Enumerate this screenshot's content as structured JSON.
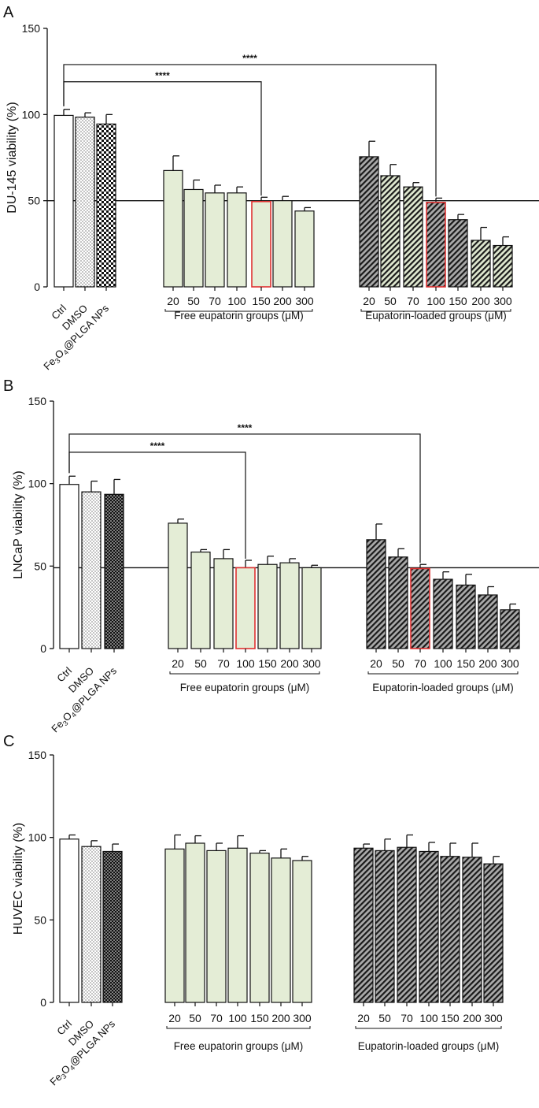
{
  "style": {
    "axis_color": "#111111",
    "ctrl_fill": "#ffffff",
    "free_fill": "#e4edd6",
    "loaded_fill": "#a9a9a9",
    "loaded_hatch": "#1a1a1a",
    "loaded_hatch_tint": "#dfe8d0",
    "highlight_color": "#e03131",
    "hatch_icon": "diagonal-hatch",
    "dots_icon": "stipple-dots",
    "checker_icon": "checkerboard"
  },
  "chart_data": [
    {
      "panel": "A",
      "type": "bar",
      "ylabel": "DU-145 viability (%)",
      "ylim": [
        0,
        150
      ],
      "yticks": [
        0,
        50,
        100,
        150
      ],
      "reference_line": 50,
      "grid": false,
      "groups": [
        {
          "name": "control",
          "label": "",
          "categories": [
            "Ctrl",
            "DMSO",
            "Fe3O4@PLGA NPs"
          ],
          "values": [
            99.5,
            98.5,
            94.5
          ],
          "errors": [
            3.5,
            2.5,
            5.5
          ],
          "patterns": [
            "plain",
            "dots",
            "checker"
          ]
        },
        {
          "name": "free",
          "label": "Free eupatorin groups (μM)",
          "categories": [
            "20",
            "50",
            "70",
            "100",
            "150",
            "200",
            "300"
          ],
          "values": [
            67.5,
            56.5,
            54.5,
            54.5,
            49.5,
            50,
            44
          ],
          "errors": [
            8.5,
            5.5,
            4.5,
            3.5,
            2.5,
            2.5,
            2
          ]
        },
        {
          "name": "loaded",
          "label": "Eupatorin-loaded groups (μM)",
          "categories": [
            "20",
            "50",
            "70",
            "100",
            "150",
            "200",
            "300"
          ],
          "values": [
            75.5,
            64.5,
            58,
            49,
            39,
            27,
            24
          ],
          "errors": [
            9,
            6.5,
            2.5,
            2.5,
            3,
            7.5,
            5
          ],
          "tint": [
            false,
            true,
            true,
            false,
            false,
            true,
            true
          ]
        }
      ],
      "highlight": [
        [
          "free",
          4
        ],
        [
          "loaded",
          3
        ]
      ],
      "significance": [
        {
          "from": [
            "control",
            0
          ],
          "to": [
            "free",
            4
          ],
          "label": "****",
          "y": 119
        },
        {
          "from": [
            "control",
            0
          ],
          "to": [
            "loaded",
            3
          ],
          "label": "****",
          "y": 129
        }
      ]
    },
    {
      "panel": "B",
      "type": "bar",
      "ylabel": "LNCaP viability (%)",
      "ylim": [
        0,
        150
      ],
      "yticks": [
        0,
        50,
        100,
        150
      ],
      "reference_line": 49,
      "grid": false,
      "groups": [
        {
          "name": "control",
          "label": "",
          "categories": [
            "Ctrl",
            "DMSO",
            "Fe3O4@PLGA NPs"
          ],
          "values": [
            99.5,
            95,
            93.5
          ],
          "errors": [
            5,
            6.5,
            9
          ],
          "patterns": [
            "plain",
            "dots",
            "dots-dark"
          ]
        },
        {
          "name": "free",
          "label": "Free eupatorin groups (μM)",
          "categories": [
            "20",
            "50",
            "70",
            "100",
            "150",
            "200",
            "300"
          ],
          "values": [
            76,
            58.5,
            54.5,
            49,
            51,
            52,
            49
          ],
          "errors": [
            2.5,
            1.5,
            5.5,
            4.5,
            5,
            2.5,
            1.5
          ]
        },
        {
          "name": "loaded",
          "label": "Eupatorin-loaded groups (μM)",
          "categories": [
            "20",
            "50",
            "70",
            "100",
            "150",
            "200",
            "300"
          ],
          "values": [
            66,
            55.5,
            48.5,
            42,
            38.5,
            32.5,
            23.5
          ],
          "errors": [
            9.5,
            5,
            2.5,
            4.5,
            6.5,
            5,
            3.5
          ],
          "tint": [
            false,
            false,
            false,
            false,
            false,
            false,
            false
          ]
        }
      ],
      "highlight": [
        [
          "free",
          3
        ],
        [
          "loaded",
          2
        ]
      ],
      "significance": [
        {
          "from": [
            "control",
            0
          ],
          "to": [
            "free",
            3
          ],
          "label": "****",
          "y": 119
        },
        {
          "from": [
            "control",
            0
          ],
          "to": [
            "loaded",
            2
          ],
          "label": "****",
          "y": 130
        }
      ]
    },
    {
      "panel": "C",
      "type": "bar",
      "ylabel": "HUVEC viability (%)",
      "ylim": [
        0,
        150
      ],
      "yticks": [
        0,
        50,
        100,
        150
      ],
      "reference_line": null,
      "grid": false,
      "groups": [
        {
          "name": "control",
          "label": "",
          "categories": [
            "Ctrl",
            "DMSO",
            "Fe3O4@PLGA NPs"
          ],
          "values": [
            99,
            94.5,
            91.5
          ],
          "errors": [
            2.5,
            3.5,
            4.5
          ],
          "patterns": [
            "plain",
            "dots",
            "dots-dark"
          ]
        },
        {
          "name": "free",
          "label": "Free eupatorin groups (μM)",
          "categories": [
            "20",
            "50",
            "70",
            "100",
            "150",
            "200",
            "300"
          ],
          "values": [
            93,
            96.5,
            92,
            93.5,
            90.5,
            87.5,
            86
          ],
          "errors": [
            8.5,
            4.5,
            4.5,
            7.5,
            1.5,
            5.5,
            2.5
          ]
        },
        {
          "name": "loaded",
          "label": "Eupatorin-loaded groups (μM)",
          "categories": [
            "20",
            "50",
            "70",
            "100",
            "150",
            "200",
            "300"
          ],
          "values": [
            93.5,
            92,
            94,
            91.5,
            88.5,
            88,
            84
          ],
          "errors": [
            2.5,
            7,
            7.5,
            5.5,
            8,
            8.5,
            4.5
          ],
          "tint": [
            false,
            false,
            false,
            false,
            false,
            false,
            false
          ]
        }
      ],
      "highlight": [],
      "significance": []
    }
  ]
}
